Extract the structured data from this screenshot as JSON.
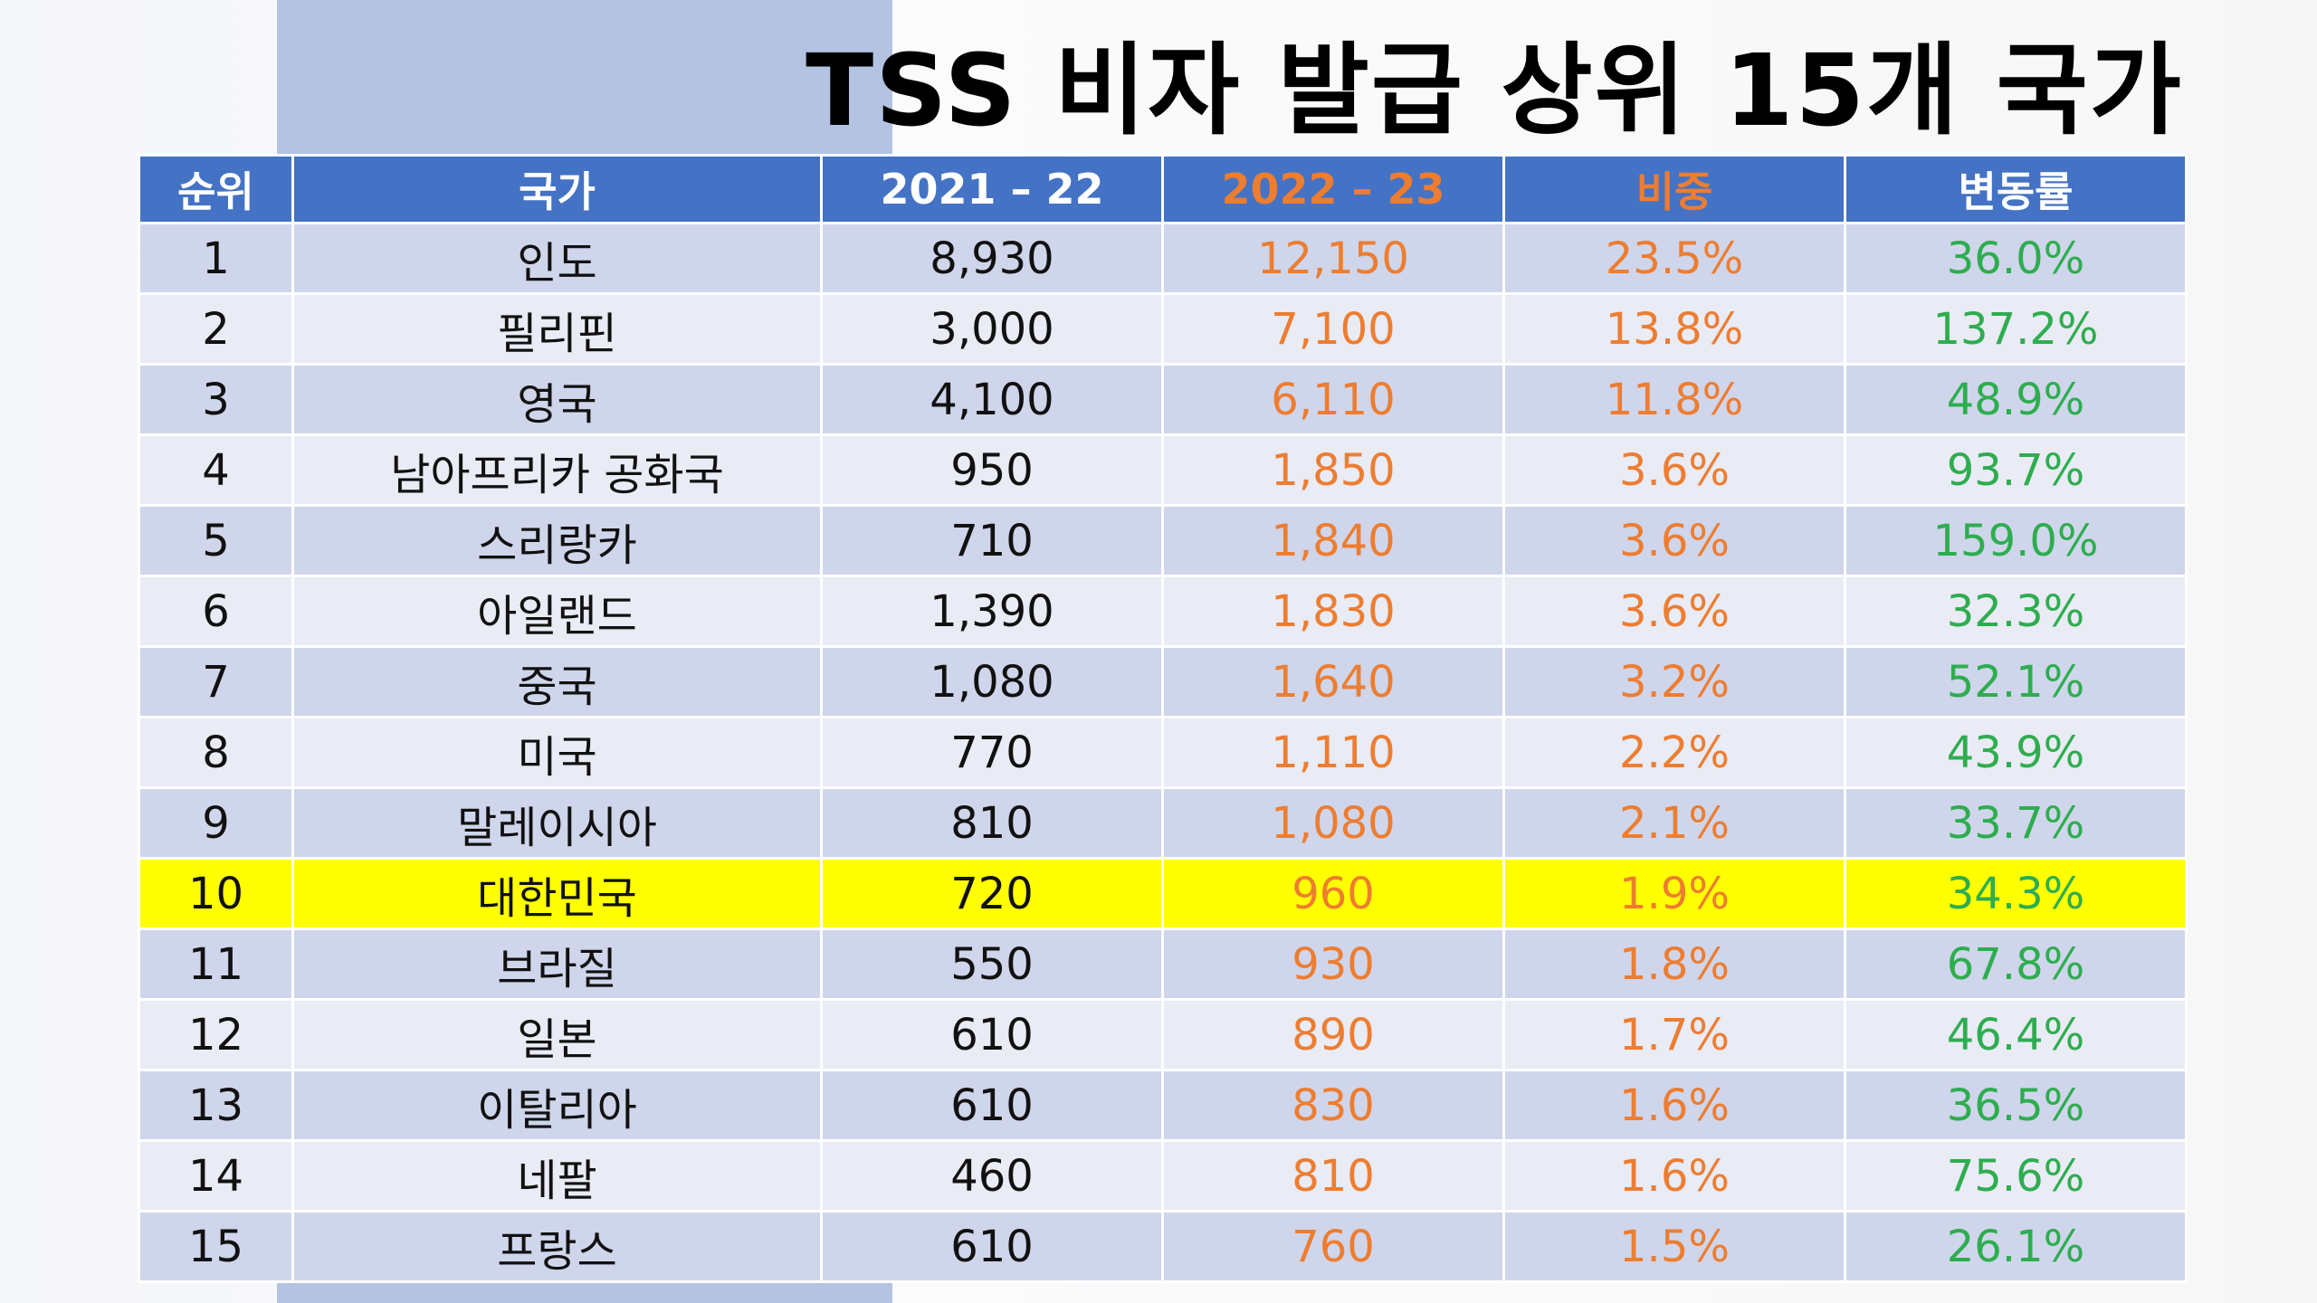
{
  "title": "TSS 비자 발급 상위 15개 국가",
  "colors": {
    "header_bg": "#4472c4",
    "header_text": "#ffffff",
    "accent_orange": "#ed7d31",
    "accent_green": "#2ead4f",
    "row_odd": "#cfd6eb",
    "row_even": "#e9ebf5",
    "highlight": "#ffff00"
  },
  "table": {
    "headers": [
      "순위",
      "국가",
      "2021 – 22",
      "2022 – 23",
      "비중",
      "변동률"
    ],
    "rows": [
      {
        "rank": "1",
        "country": "인도",
        "fy2122": "8,930",
        "fy2223": "12,150",
        "share": "23.5%",
        "change": "36.0%"
      },
      {
        "rank": "2",
        "country": "필리핀",
        "fy2122": "3,000",
        "fy2223": "7,100",
        "share": "13.8%",
        "change": "137.2%"
      },
      {
        "rank": "3",
        "country": "영국",
        "fy2122": "4,100",
        "fy2223": "6,110",
        "share": "11.8%",
        "change": "48.9%"
      },
      {
        "rank": "4",
        "country": "남아프리카 공화국",
        "fy2122": "950",
        "fy2223": "1,850",
        "share": "3.6%",
        "change": "93.7%"
      },
      {
        "rank": "5",
        "country": "스리랑카",
        "fy2122": "710",
        "fy2223": "1,840",
        "share": "3.6%",
        "change": "159.0%"
      },
      {
        "rank": "6",
        "country": "아일랜드",
        "fy2122": "1,390",
        "fy2223": "1,830",
        "share": "3.6%",
        "change": "32.3%"
      },
      {
        "rank": "7",
        "country": "중국",
        "fy2122": "1,080",
        "fy2223": "1,640",
        "share": "3.2%",
        "change": "52.1%"
      },
      {
        "rank": "8",
        "country": "미국",
        "fy2122": "770",
        "fy2223": "1,110",
        "share": "2.2%",
        "change": "43.9%"
      },
      {
        "rank": "9",
        "country": "말레이시아",
        "fy2122": "810",
        "fy2223": "1,080",
        "share": "2.1%",
        "change": "33.7%"
      },
      {
        "rank": "10",
        "country": "대한민국",
        "fy2122": "720",
        "fy2223": "960",
        "share": "1.9%",
        "change": "34.3%",
        "highlight": true
      },
      {
        "rank": "11",
        "country": "브라질",
        "fy2122": "550",
        "fy2223": "930",
        "share": "1.8%",
        "change": "67.8%"
      },
      {
        "rank": "12",
        "country": "일본",
        "fy2122": "610",
        "fy2223": "890",
        "share": "1.7%",
        "change": "46.4%"
      },
      {
        "rank": "13",
        "country": "이탈리아",
        "fy2122": "610",
        "fy2223": "830",
        "share": "1.6%",
        "change": "36.5%"
      },
      {
        "rank": "14",
        "country": "네팔",
        "fy2122": "460",
        "fy2223": "810",
        "share": "1.6%",
        "change": "75.6%"
      },
      {
        "rank": "15",
        "country": "프랑스",
        "fy2122": "610",
        "fy2223": "760",
        "share": "1.5%",
        "change": "26.1%"
      }
    ]
  }
}
